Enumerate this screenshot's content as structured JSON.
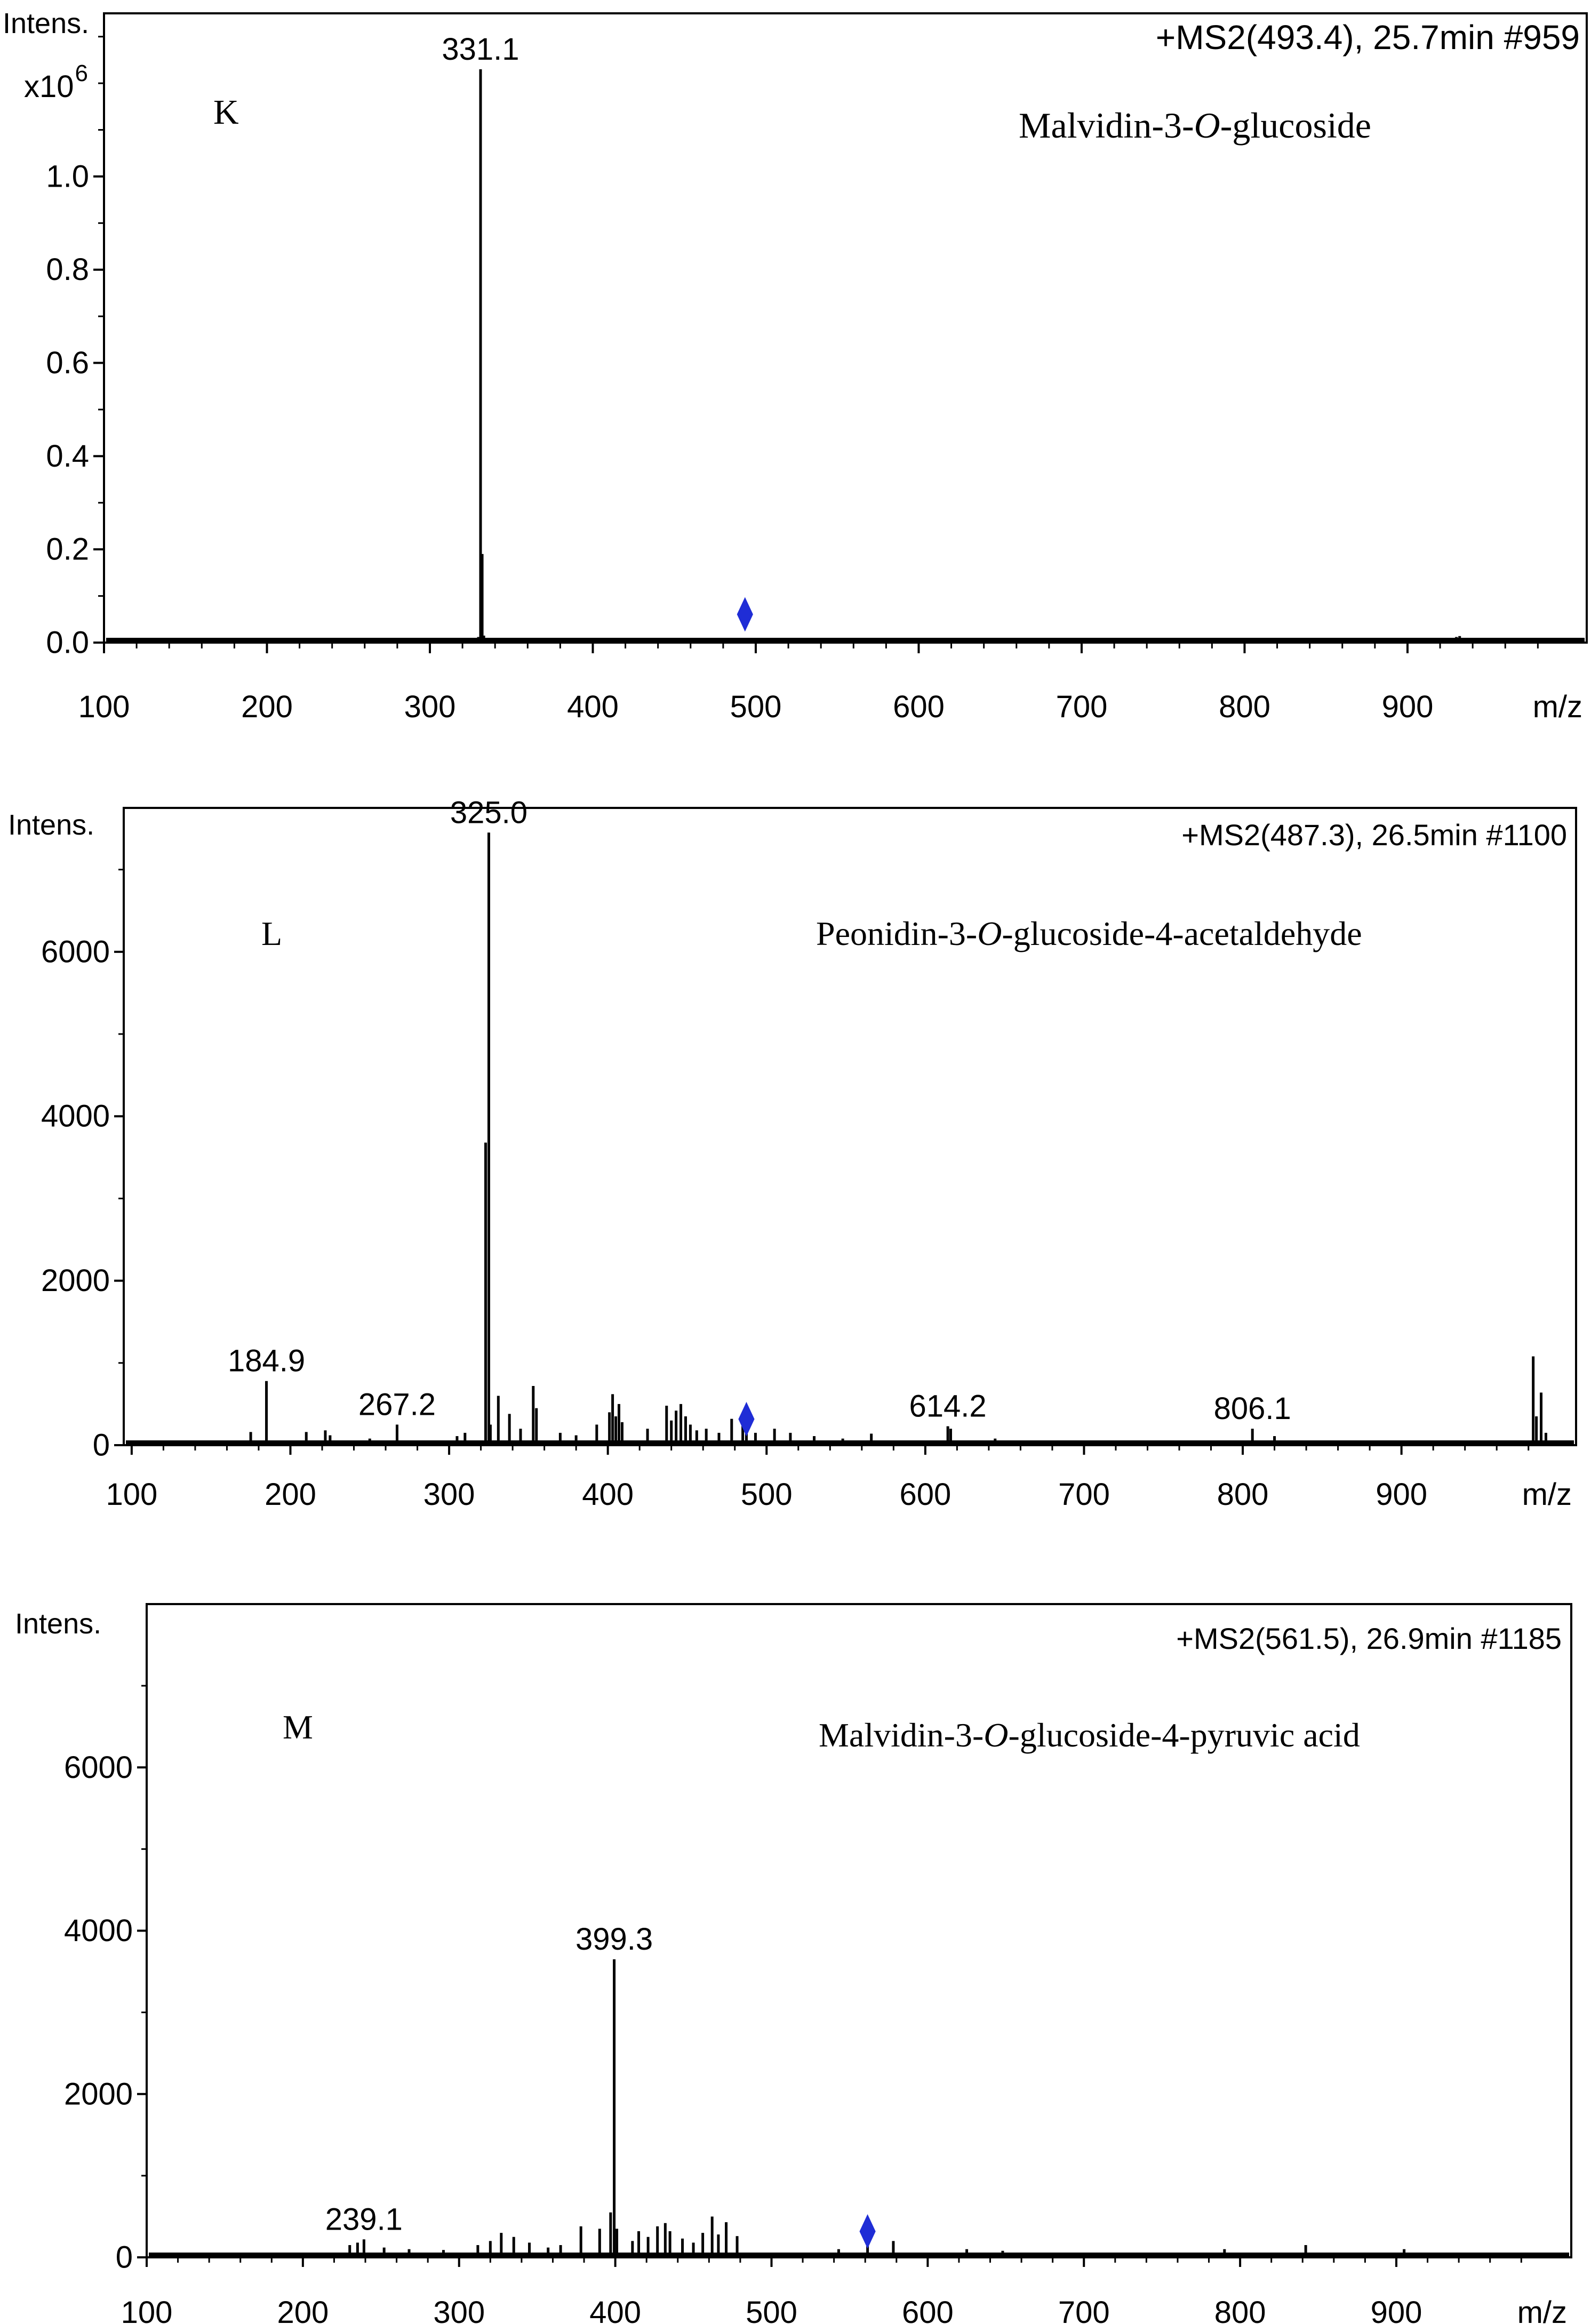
{
  "chart_data": [
    {
      "type": "bar",
      "panel_letter": "K",
      "compound": {
        "pre": "Malvidin-3-",
        "italic": "O",
        "post": "-glucoside"
      },
      "header": "+MS2(493.4), 25.7min #959",
      "ylabel": "Intens.",
      "yscale_label": {
        "base": "x10",
        "exp": "6"
      },
      "xlabel": "m/z",
      "xlim": [
        100,
        1010
      ],
      "ylim": [
        0,
        1.35
      ],
      "yticks": [
        0.0,
        0.2,
        0.4,
        0.6,
        0.8,
        1.0
      ],
      "ytick_labels": [
        "0.0",
        "0.2",
        "0.4",
        "0.6",
        "0.8",
        "1.0"
      ],
      "yminor_step": 0.1,
      "xticks": [
        100,
        200,
        300,
        400,
        500,
        600,
        700,
        800,
        900
      ],
      "xtick_labels": [
        "100",
        "200",
        "300",
        "400",
        "500",
        "600",
        "700",
        "800",
        "900"
      ],
      "xminor_step": 20,
      "precursor_mz": 493.4,
      "precursor_marker_y": 0.04,
      "peaks": [
        {
          "mz": 329.8,
          "y": 0.012
        },
        {
          "mz": 331.1,
          "y": 1.23
        },
        {
          "mz": 332.1,
          "y": 0.19
        },
        {
          "mz": 333.1,
          "y": 0.015
        },
        {
          "mz": 930.0,
          "y": 0.012
        },
        {
          "mz": 932.0,
          "y": 0.014
        },
        {
          "mz": 934.5,
          "y": 0.01
        },
        {
          "mz": 940.0,
          "y": 0.008
        }
      ],
      "peak_labels": [
        {
          "mz": 331.1,
          "y": 1.23,
          "text": "331.1"
        }
      ],
      "colors": {
        "marker": "#1f2dd6",
        "ink": "#000000"
      }
    },
    {
      "type": "bar",
      "panel_letter": "L",
      "compound": {
        "pre": "Peonidin-3-",
        "italic": "O",
        "post": "-glucoside-4-acetaldehyde"
      },
      "header": "+MS2(487.3), 26.5min #1100",
      "ylabel": "Intens.",
      "xlabel": "m/z",
      "xlim": [
        95,
        1010
      ],
      "ylim": [
        0,
        7750
      ],
      "yticks": [
        0,
        2000,
        4000,
        6000
      ],
      "ytick_labels": [
        "0",
        "2000",
        "4000",
        "6000"
      ],
      "yminor_step": 1000,
      "xticks": [
        100,
        200,
        300,
        400,
        500,
        600,
        700,
        800,
        900
      ],
      "xtick_labels": [
        "100",
        "200",
        "300",
        "400",
        "500",
        "600",
        "700",
        "800",
        "900"
      ],
      "xminor_step": 20,
      "precursor_mz": 487.3,
      "precursor_marker_y": 200,
      "peaks": [
        {
          "mz": 175.0,
          "y": 160
        },
        {
          "mz": 184.9,
          "y": 780
        },
        {
          "mz": 210.0,
          "y": 160
        },
        {
          "mz": 222.0,
          "y": 180
        },
        {
          "mz": 225.0,
          "y": 120
        },
        {
          "mz": 250.0,
          "y": 80
        },
        {
          "mz": 267.2,
          "y": 250
        },
        {
          "mz": 305.0,
          "y": 110
        },
        {
          "mz": 310.0,
          "y": 150
        },
        {
          "mz": 323.0,
          "y": 3680
        },
        {
          "mz": 325.0,
          "y": 7450
        },
        {
          "mz": 326.0,
          "y": 250
        },
        {
          "mz": 331.0,
          "y": 600
        },
        {
          "mz": 338.0,
          "y": 380
        },
        {
          "mz": 345.0,
          "y": 200
        },
        {
          "mz": 353.0,
          "y": 720
        },
        {
          "mz": 355.0,
          "y": 450
        },
        {
          "mz": 370.0,
          "y": 150
        },
        {
          "mz": 380.0,
          "y": 120
        },
        {
          "mz": 393.0,
          "y": 250
        },
        {
          "mz": 401.0,
          "y": 400
        },
        {
          "mz": 403.0,
          "y": 620
        },
        {
          "mz": 405.0,
          "y": 350
        },
        {
          "mz": 407.0,
          "y": 500
        },
        {
          "mz": 409.0,
          "y": 280
        },
        {
          "mz": 425.0,
          "y": 200
        },
        {
          "mz": 437.0,
          "y": 480
        },
        {
          "mz": 440.0,
          "y": 300
        },
        {
          "mz": 443.0,
          "y": 420
        },
        {
          "mz": 446.0,
          "y": 500
        },
        {
          "mz": 449.0,
          "y": 350
        },
        {
          "mz": 452.0,
          "y": 250
        },
        {
          "mz": 456.0,
          "y": 180
        },
        {
          "mz": 462.0,
          "y": 200
        },
        {
          "mz": 470.0,
          "y": 150
        },
        {
          "mz": 478.0,
          "y": 320
        },
        {
          "mz": 485.0,
          "y": 380
        },
        {
          "mz": 487.3,
          "y": 300
        },
        {
          "mz": 493.0,
          "y": 150
        },
        {
          "mz": 505.0,
          "y": 200
        },
        {
          "mz": 515.0,
          "y": 150
        },
        {
          "mz": 530.0,
          "y": 110
        },
        {
          "mz": 548.0,
          "y": 80
        },
        {
          "mz": 566.0,
          "y": 140
        },
        {
          "mz": 614.2,
          "y": 230
        },
        {
          "mz": 616.0,
          "y": 200
        },
        {
          "mz": 644.0,
          "y": 80
        },
        {
          "mz": 806.1,
          "y": 200
        },
        {
          "mz": 820.0,
          "y": 110
        },
        {
          "mz": 983.0,
          "y": 1080
        },
        {
          "mz": 985.0,
          "y": 350
        },
        {
          "mz": 988.0,
          "y": 640
        },
        {
          "mz": 991.0,
          "y": 150
        }
      ],
      "peak_labels": [
        {
          "mz": 184.9,
          "y": 780,
          "text": "184.9"
        },
        {
          "mz": 267.2,
          "y": 250,
          "text": "267.2"
        },
        {
          "mz": 325.0,
          "y": 7450,
          "text": "325.0"
        },
        {
          "mz": 614.2,
          "y": 230,
          "text": "614.2"
        },
        {
          "mz": 806.1,
          "y": 200,
          "text": "806.1"
        }
      ],
      "colors": {
        "marker": "#1f2dd6",
        "ink": "#000000"
      }
    },
    {
      "type": "bar",
      "panel_letter": "M",
      "compound": {
        "pre": "Malvidin-3-",
        "italic": "O",
        "post": "-glucoside-4-pyruvic acid"
      },
      "header": "+MS2(561.5), 26.9min #1185",
      "ylabel": "Intens.",
      "xlabel": "m/z",
      "xlim": [
        100,
        1012
      ],
      "ylim": [
        0,
        8000
      ],
      "yticks": [
        0,
        2000,
        4000,
        6000
      ],
      "ytick_labels": [
        "0",
        "2000",
        "4000",
        "6000"
      ],
      "yminor_step": 1000,
      "xticks": [
        100,
        200,
        300,
        400,
        500,
        600,
        700,
        800,
        900
      ],
      "xtick_labels": [
        "100",
        "200",
        "300",
        "400",
        "500",
        "600",
        "700",
        "800",
        "900"
      ],
      "xminor_step": 20,
      "precursor_mz": 561.5,
      "precursor_marker_y": 200,
      "peaks": [
        {
          "mz": 230.0,
          "y": 150
        },
        {
          "mz": 235.0,
          "y": 180
        },
        {
          "mz": 239.1,
          "y": 220
        },
        {
          "mz": 252.0,
          "y": 120
        },
        {
          "mz": 268.0,
          "y": 100
        },
        {
          "mz": 290.0,
          "y": 90
        },
        {
          "mz": 312.0,
          "y": 150
        },
        {
          "mz": 320.0,
          "y": 200
        },
        {
          "mz": 327.0,
          "y": 300
        },
        {
          "mz": 335.0,
          "y": 250
        },
        {
          "mz": 345.0,
          "y": 180
        },
        {
          "mz": 357.0,
          "y": 120
        },
        {
          "mz": 365.0,
          "y": 150
        },
        {
          "mz": 378.0,
          "y": 380
        },
        {
          "mz": 390.0,
          "y": 350
        },
        {
          "mz": 397.0,
          "y": 550
        },
        {
          "mz": 399.3,
          "y": 3650
        },
        {
          "mz": 401.0,
          "y": 350
        },
        {
          "mz": 411.0,
          "y": 200
        },
        {
          "mz": 415.0,
          "y": 320
        },
        {
          "mz": 421.0,
          "y": 250
        },
        {
          "mz": 427.0,
          "y": 380
        },
        {
          "mz": 432.0,
          "y": 420
        },
        {
          "mz": 435.0,
          "y": 320
        },
        {
          "mz": 443.0,
          "y": 230
        },
        {
          "mz": 450.0,
          "y": 180
        },
        {
          "mz": 456.0,
          "y": 300
        },
        {
          "mz": 462.0,
          "y": 500
        },
        {
          "mz": 466.0,
          "y": 280
        },
        {
          "mz": 471.0,
          "y": 430
        },
        {
          "mz": 478.0,
          "y": 260
        },
        {
          "mz": 543.0,
          "y": 100
        },
        {
          "mz": 561.5,
          "y": 150
        },
        {
          "mz": 578.0,
          "y": 200
        },
        {
          "mz": 625.0,
          "y": 100
        },
        {
          "mz": 648.0,
          "y": 80
        },
        {
          "mz": 790.0,
          "y": 100
        },
        {
          "mz": 842.0,
          "y": 150
        },
        {
          "mz": 905.0,
          "y": 100
        }
      ],
      "peak_labels": [
        {
          "mz": 239.1,
          "y": 220,
          "text": "239.1"
        },
        {
          "mz": 399.3,
          "y": 3650,
          "text": "399.3"
        }
      ],
      "colors": {
        "marker": "#1f2dd6",
        "ink": "#000000"
      }
    }
  ]
}
